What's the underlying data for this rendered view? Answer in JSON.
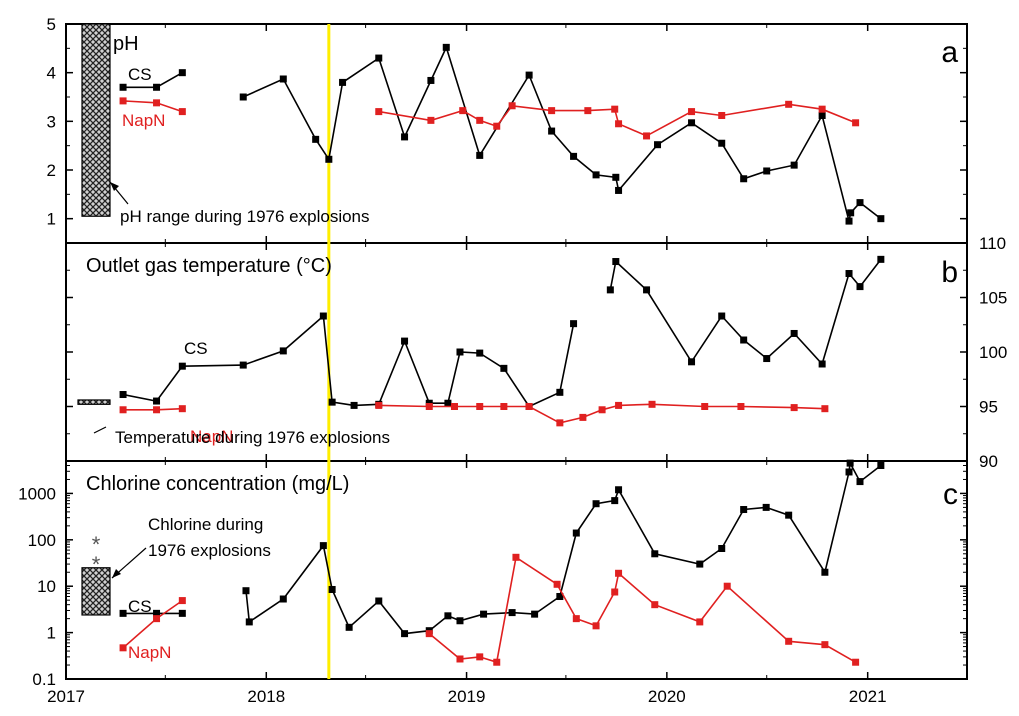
{
  "chart_data": [
    {
      "type": "line",
      "panel_letter": "a",
      "title": "pH",
      "ylim": [
        0.5,
        5
      ],
      "y_ticks": [
        1,
        2,
        3,
        4,
        5
      ],
      "xlim": [
        "2017-01-01",
        "2021-07-01"
      ],
      "series": [
        {
          "name": "CS",
          "color": "#000000",
          "segments": [
            [
              [
                "2017-04-15",
                3.7
              ],
              [
                "2017-06-15",
                3.7
              ],
              [
                "2017-08-01",
                4.0
              ]
            ],
            [
              [
                "2017-11-20",
                3.5
              ],
              [
                "2018-02-01",
                3.87
              ],
              [
                "2018-04-01",
                2.63
              ],
              [
                "2018-04-25",
                2.22
              ],
              [
                "2018-05-20",
                3.8
              ],
              [
                "2018-07-25",
                4.3
              ],
              [
                "2018-09-10",
                2.68
              ],
              [
                "2018-10-28",
                3.84
              ],
              [
                "2018-11-25",
                4.52
              ],
              [
                "2019-01-25",
                2.3
              ],
              [
                "2019-04-25",
                3.95
              ],
              [
                "2019-06-05",
                2.8
              ],
              [
                "2019-07-15",
                2.28
              ],
              [
                "2019-08-25",
                1.9
              ],
              [
                "2019-09-30",
                1.85
              ],
              [
                "2019-10-05",
                1.58
              ],
              [
                "2019-12-15",
                2.52
              ],
              [
                "2020-02-15",
                2.97
              ],
              [
                "2020-04-10",
                2.55
              ],
              [
                "2020-05-20",
                1.82
              ],
              [
                "2020-07-01",
                1.98
              ],
              [
                "2020-08-20",
                2.1
              ],
              [
                "2020-10-10",
                3.12
              ],
              [
                "2020-11-28",
                0.95
              ],
              [
                "2020-12-01",
                1.12
              ],
              [
                "2020-12-18",
                1.33
              ],
              [
                "2021-01-25",
                1.0
              ]
            ]
          ]
        },
        {
          "name": "NapN",
          "color": "#e02020",
          "segments": [
            [
              [
                "2017-04-15",
                3.42
              ],
              [
                "2017-06-15",
                3.38
              ],
              [
                "2017-08-01",
                3.2
              ]
            ],
            [
              [
                "2018-07-25",
                3.2
              ],
              [
                "2018-10-28",
                3.02
              ],
              [
                "2018-12-25",
                3.22
              ],
              [
                "2019-01-25",
                3.02
              ],
              [
                "2019-02-25",
                2.9
              ],
              [
                "2019-03-25",
                3.32
              ],
              [
                "2019-06-05",
                3.22
              ],
              [
                "2019-08-10",
                3.22
              ],
              [
                "2019-09-28",
                3.25
              ],
              [
                "2019-10-05",
                2.95
              ],
              [
                "2019-11-25",
                2.7
              ],
              [
                "2020-02-15",
                3.2
              ],
              [
                "2020-04-10",
                3.12
              ],
              [
                "2020-08-10",
                3.35
              ],
              [
                "2020-10-10",
                3.25
              ],
              [
                "2020-12-10",
                2.97
              ]
            ]
          ]
        }
      ],
      "labels": {
        "cs": "CS",
        "napn": "NapN"
      },
      "annotation": "pH range during 1976 explosions",
      "hatch_range": [
        1.05,
        5.0
      ]
    },
    {
      "type": "line",
      "panel_letter": "b",
      "title": "Outlet gas temperature (°C)",
      "ylim": [
        90,
        110
      ],
      "y_ticks": [
        90,
        95,
        100,
        105,
        110
      ],
      "y_axis_side": "right",
      "xlim": [
        "2017-01-01",
        "2021-07-01"
      ],
      "series": [
        {
          "name": "CS",
          "color": "#000000",
          "segments": [
            [
              [
                "2017-04-15",
                96.1
              ],
              [
                "2017-06-15",
                95.5
              ],
              [
                "2017-08-01",
                98.7
              ],
              [
                "2017-11-20",
                98.8
              ],
              [
                "2018-02-01",
                100.1
              ],
              [
                "2018-04-15",
                103.3
              ],
              [
                "2018-05-01",
                95.4
              ],
              [
                "2018-06-10",
                95.1
              ],
              [
                "2018-07-25",
                95.2
              ],
              [
                "2018-09-10",
                101.0
              ],
              [
                "2018-10-25",
                95.3
              ],
              [
                "2018-11-28",
                95.3
              ],
              [
                "2018-12-20",
                100.0
              ],
              [
                "2019-01-25",
                99.9
              ],
              [
                "2019-03-10",
                98.5
              ],
              [
                "2019-04-25",
                95.0
              ],
              [
                "2019-06-20",
                96.3
              ],
              [
                "2019-07-15",
                102.6
              ]
            ],
            [
              [
                "2019-09-20",
                105.7
              ],
              [
                "2019-09-30",
                108.3
              ],
              [
                "2019-11-25",
                105.7
              ],
              [
                "2020-02-15",
                99.1
              ],
              [
                "2020-04-10",
                103.3
              ],
              [
                "2020-05-20",
                101.1
              ],
              [
                "2020-07-01",
                99.4
              ],
              [
                "2020-08-20",
                101.7
              ],
              [
                "2020-10-10",
                98.9
              ],
              [
                "2020-11-28",
                107.2
              ],
              [
                "2020-12-18",
                106.0
              ],
              [
                "2021-01-25",
                108.5
              ]
            ]
          ]
        },
        {
          "name": "NapN",
          "color": "#e02020",
          "segments": [
            [
              [
                "2017-04-15",
                94.7
              ],
              [
                "2017-06-15",
                94.7
              ],
              [
                "2017-08-01",
                94.8
              ]
            ],
            [
              [
                "2018-07-25",
                95.1
              ],
              [
                "2018-10-25",
                95.0
              ],
              [
                "2018-12-10",
                95.0
              ],
              [
                "2019-01-25",
                95.0
              ],
              [
                "2019-03-10",
                95.0
              ],
              [
                "2019-04-25",
                95.0
              ],
              [
                "2019-06-20",
                93.5
              ],
              [
                "2019-08-01",
                94.0
              ],
              [
                "2019-09-05",
                94.7
              ],
              [
                "2019-10-05",
                95.1
              ],
              [
                "2019-12-05",
                95.2
              ],
              [
                "2020-03-10",
                95.0
              ],
              [
                "2020-05-15",
                95.0
              ],
              [
                "2020-08-20",
                94.9
              ],
              [
                "2020-10-15",
                94.8
              ]
            ]
          ]
        }
      ],
      "labels": {
        "cs": "CS",
        "napn": "NapN"
      },
      "annotation": "Temperature during 1976 explosions",
      "hatch_range": [
        95.2,
        95.6
      ]
    },
    {
      "type": "line",
      "panel_letter": "c",
      "title": "Chlorine concentration (mg/L)",
      "y_scale": "log",
      "ylim": [
        0.1,
        5000
      ],
      "y_ticks": [
        0.1,
        1,
        10,
        100,
        1000
      ],
      "y_tick_labels": [
        "0.1",
        "1",
        "10",
        "100",
        "1000"
      ],
      "xlim": [
        "2017-01-01",
        "2021-07-01"
      ],
      "x_ticks": [
        "2017",
        "2018",
        "2019",
        "2020",
        "2021"
      ],
      "series": [
        {
          "name": "CS",
          "color": "#000000",
          "segments": [
            [
              [
                "2017-04-15",
                2.6
              ],
              [
                "2017-06-15",
                2.6
              ],
              [
                "2017-08-01",
                2.6
              ]
            ],
            [
              [
                "2017-11-25",
                8.0
              ],
              [
                "2017-12-01",
                1.7
              ],
              [
                "2018-02-01",
                5.3
              ],
              [
                "2018-04-15",
                75
              ],
              [
                "2018-05-01",
                8.5
              ],
              [
                "2018-06-01",
                1.3
              ],
              [
                "2018-07-25",
                4.8
              ],
              [
                "2018-09-10",
                0.95
              ],
              [
                "2018-10-25",
                1.1
              ],
              [
                "2018-11-28",
                2.3
              ],
              [
                "2018-12-20",
                1.8
              ],
              [
                "2019-02-01",
                2.5
              ],
              [
                "2019-03-25",
                2.7
              ],
              [
                "2019-05-05",
                2.5
              ],
              [
                "2019-06-20",
                6.0
              ],
              [
                "2019-07-20",
                140
              ],
              [
                "2019-08-25",
                600
              ],
              [
                "2019-09-28",
                700
              ],
              [
                "2019-10-05",
                1200
              ],
              [
                "2019-12-10",
                50
              ],
              [
                "2020-03-01",
                30
              ],
              [
                "2020-04-10",
                65
              ],
              [
                "2020-05-20",
                450
              ],
              [
                "2020-06-30",
                500
              ],
              [
                "2020-08-10",
                340
              ],
              [
                "2020-10-15",
                20
              ],
              [
                "2020-11-28",
                2900
              ],
              [
                "2020-11-30",
                4500
              ],
              [
                "2020-12-18",
                1800
              ],
              [
                "2021-01-25",
                4000
              ]
            ]
          ]
        },
        {
          "name": "NapN",
          "color": "#e02020",
          "segments": [
            [
              [
                "2017-04-15",
                0.47
              ],
              [
                "2017-06-15",
                2.0
              ],
              [
                "2017-08-01",
                4.9
              ]
            ],
            [
              [
                "2018-10-25",
                0.95
              ],
              [
                "2018-12-20",
                0.27
              ],
              [
                "2019-01-25",
                0.3
              ],
              [
                "2019-02-25",
                0.23
              ],
              [
                "2019-04-01",
                42
              ],
              [
                "2019-06-15",
                11
              ],
              [
                "2019-07-20",
                2.0
              ],
              [
                "2019-08-25",
                1.4
              ],
              [
                "2019-09-28",
                7.5
              ],
              [
                "2019-10-05",
                19
              ],
              [
                "2019-12-10",
                4.0
              ],
              [
                "2020-03-01",
                1.7
              ],
              [
                "2020-04-20",
                10
              ],
              [
                "2020-08-10",
                0.65
              ],
              [
                "2020-10-15",
                0.55
              ],
              [
                "2020-12-10",
                0.23
              ]
            ]
          ]
        }
      ],
      "labels": {
        "cs": "CS",
        "napn": "NapN"
      },
      "annotation_line1": "Chlorine during",
      "annotation_line2": "1976 explosions",
      "hatch_range": [
        2.4,
        25
      ],
      "asterisks": [
        "*",
        "*"
      ]
    }
  ],
  "colors": {
    "cs": "#000000",
    "napn": "#e02020",
    "event_line": "#ffee00"
  },
  "event_date": "2018-04-25"
}
